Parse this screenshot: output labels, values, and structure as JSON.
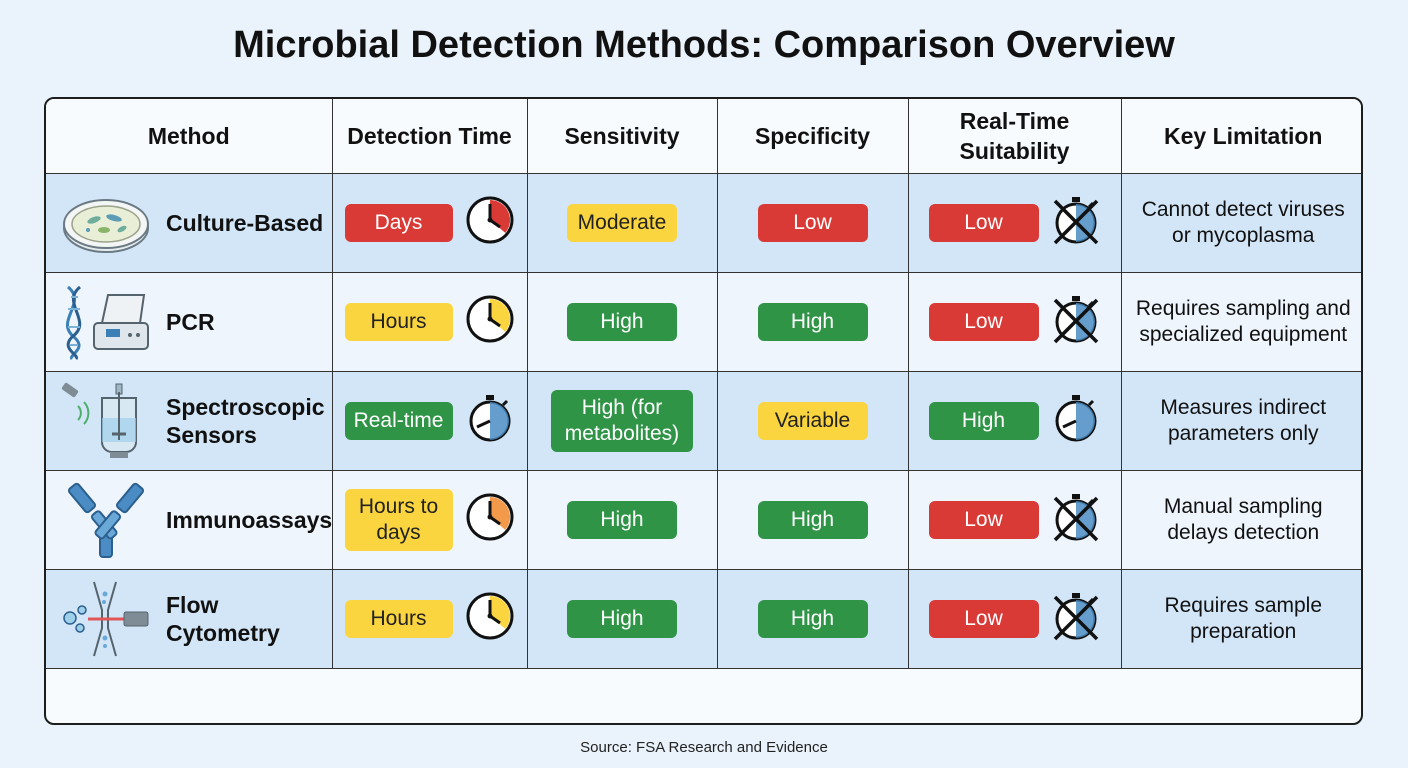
{
  "title": "Microbial Detection Methods: Comparison Overview",
  "headers": [
    "Method",
    "Detection Time",
    "Sensitivity",
    "Specificity",
    "Real-Time Suitability",
    "Key Limitation"
  ],
  "rows": [
    {
      "method": "Culture-Based",
      "method_icon": "petri-dish-icon",
      "time": "Days",
      "time_color": "#d93a36",
      "time_icon": "clock-red-icon",
      "sensitivity": "Moderate",
      "sensitivity_color": "#fbd53f",
      "specificity": "Low",
      "specificity_color": "#d93a36",
      "realtime": "Low",
      "realtime_color": "#d93a36",
      "realtime_icon": "stopwatch-crossed-icon",
      "limitation": "Cannot detect viruses or mycoplasma"
    },
    {
      "method": "PCR",
      "method_icon": "dna-pcr-machine-icon",
      "time": "Hours",
      "time_color": "#fbd53f",
      "time_icon": "clock-yellow-icon",
      "sensitivity": "High",
      "sensitivity_color": "#2f9446",
      "specificity": "High",
      "specificity_color": "#2f9446",
      "realtime": "Low",
      "realtime_color": "#d93a36",
      "realtime_icon": "stopwatch-crossed-icon",
      "limitation": "Requires sampling and specialized equipment"
    },
    {
      "method": "Spectroscopic Sensors",
      "method_icon": "bioreactor-sensor-icon",
      "time": "Real-time",
      "time_color": "#2f9446",
      "time_icon": "stopwatch-icon",
      "sensitivity": "High (for metabolites)",
      "sensitivity_color": "#2f9446",
      "specificity": "Variable",
      "specificity_color": "#fbd53f",
      "realtime": "High",
      "realtime_color": "#2f9446",
      "realtime_icon": "stopwatch-icon",
      "limitation": "Measures indirect parameters only"
    },
    {
      "method": "Immunoassays",
      "method_icon": "antibody-icon",
      "time": "Hours to days",
      "time_color": "#fbd53f",
      "time_icon": "clock-orange-icon",
      "sensitivity": "High",
      "sensitivity_color": "#2f9446",
      "specificity": "High",
      "specificity_color": "#2f9446",
      "realtime": "Low",
      "realtime_color": "#d93a36",
      "realtime_icon": "stopwatch-crossed-icon",
      "limitation": "Manual sampling delays detection"
    },
    {
      "method": "Flow Cytometry",
      "method_icon": "flow-cell-icon",
      "time": "Hours",
      "time_color": "#fbd53f",
      "time_icon": "clock-yellow-icon",
      "sensitivity": "High",
      "sensitivity_color": "#2f9446",
      "specificity": "High",
      "specificity_color": "#2f9446",
      "realtime": "Low",
      "realtime_color": "#d93a36",
      "realtime_icon": "stopwatch-crossed-icon",
      "limitation": "Requires sample preparation"
    }
  ],
  "source": "Source: FSA Research and Evidence"
}
